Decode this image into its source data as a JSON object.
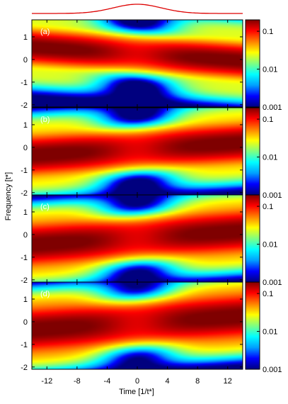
{
  "chart_data": {
    "type": "heatmap",
    "title": "",
    "xlabel": "Time [1/t*]",
    "ylabel": "Frequency [t*]",
    "xlim": [
      -14,
      14
    ],
    "ylim": [
      -2.1,
      1.75
    ],
    "xticks": [
      -12,
      -8,
      -4,
      0,
      4,
      8,
      12
    ],
    "yticks": [
      -2,
      -1,
      0,
      1
    ],
    "colorbar": {
      "scale": "log",
      "range": [
        0.001,
        0.2
      ],
      "ticks": [
        0.001,
        0.01,
        0.1
      ],
      "tick_labels": [
        "0.001",
        "0.01",
        "0.1"
      ],
      "colormap": [
        "#00007f",
        "#0000ff",
        "#00a0ff",
        "#00ffff",
        "#80ff80",
        "#ffff00",
        "#ff8000",
        "#ff0000",
        "#7f0000"
      ]
    },
    "pulse": {
      "color": "#dd0000",
      "description_values": {
        "center": 0,
        "width": 3.2,
        "baseline": 0,
        "peak": 1
      }
    },
    "panels": [
      {
        "label": "(a)",
        "band_center_start": 0.55,
        "band_center_end": -0.05,
        "band_width": 0.42,
        "gap_depth": 0.9
      },
      {
        "label": "(b)",
        "band_center_start": -0.35,
        "band_center_end": 0.2,
        "band_width": 0.48,
        "gap_depth": 0.85
      },
      {
        "label": "(c)",
        "band_center_start": -0.45,
        "band_center_end": 0.15,
        "band_width": 0.52,
        "gap_depth": 0.8
      },
      {
        "label": "(d)",
        "band_center_start": -0.35,
        "band_center_end": 0.25,
        "band_width": 0.55,
        "gap_depth": 0.75
      }
    ]
  }
}
